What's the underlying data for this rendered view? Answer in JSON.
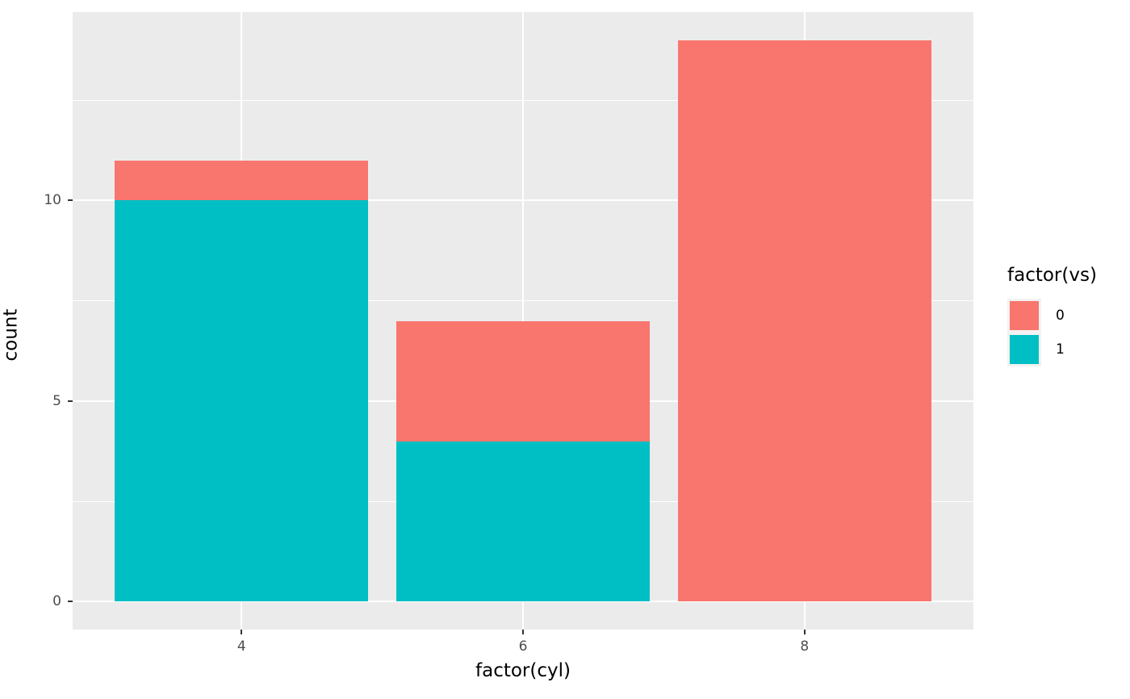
{
  "chart_data": {
    "type": "bar",
    "stacked": true,
    "title": "",
    "xlabel": "factor(cyl)",
    "ylabel": "count",
    "categories": [
      "4",
      "6",
      "8"
    ],
    "series": [
      {
        "name": "0",
        "color": "#F8766D",
        "values": [
          1,
          3,
          14
        ]
      },
      {
        "name": "1",
        "color": "#00BFC4",
        "values": [
          10,
          4,
          0
        ]
      }
    ],
    "stack_totals": [
      11,
      7,
      14
    ],
    "ylim": [
      0,
      14
    ],
    "yticks": [
      "0",
      "5",
      "10"
    ],
    "ytick_values": [
      0,
      5,
      10
    ],
    "ytick_minor_values": [
      2.5,
      7.5,
      12.5
    ],
    "grid": true,
    "panel_bg": "#EBEBEB",
    "grid_color": "#FFFFFF",
    "tick_color": "#333333",
    "tick_label_color": "#4D4D4D",
    "legend": {
      "position": "right",
      "title": "factor(vs)",
      "entries": [
        {
          "label": "0",
          "color": "#F8766D"
        },
        {
          "label": "1",
          "color": "#00BFC4"
        }
      ]
    }
  }
}
